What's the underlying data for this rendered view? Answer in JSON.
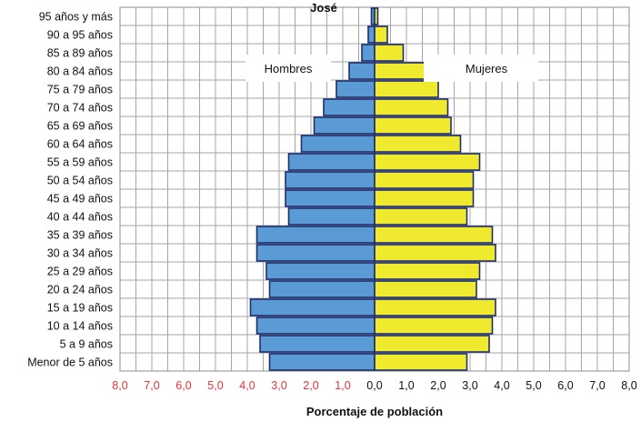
{
  "chart_data": {
    "type": "bar",
    "orientation": "horizontal",
    "layout": "population-pyramid",
    "title": "José",
    "xlabel": "Porcentaje de población",
    "categories": [
      "Menor de 5 años",
      "5 a 9 años",
      "10 a 14 años",
      "15 a 19 años",
      "20 a 24 años",
      "25 a 29 años",
      "30 a 34 años",
      "35 a 39 años",
      "40 a 44 años",
      "45 a 49 años",
      "50 a 54 años",
      "55 a 59 años",
      "60 a 64 años",
      "65 a 69 años",
      "70 a 74 años",
      "75 a 79 años",
      "80 a 84 años",
      "85 a 89 años",
      "90 a 95 años",
      "95 años y más"
    ],
    "series": [
      {
        "name": "Hombres",
        "side": "left",
        "color": "#5b9bd5",
        "values": [
          3.3,
          3.6,
          3.7,
          3.9,
          3.3,
          3.4,
          3.7,
          3.7,
          2.7,
          2.8,
          2.8,
          2.7,
          2.3,
          1.9,
          1.6,
          1.2,
          0.8,
          0.4,
          0.2,
          0.1
        ]
      },
      {
        "name": "Mujeres",
        "side": "right",
        "color": "#f0ea2f",
        "values": [
          2.9,
          3.6,
          3.7,
          3.8,
          3.2,
          3.3,
          3.8,
          3.7,
          2.9,
          3.1,
          3.1,
          3.3,
          2.7,
          2.4,
          2.3,
          2.0,
          1.6,
          0.9,
          0.4,
          0.1
        ]
      }
    ],
    "xlim": [
      -8,
      8
    ],
    "x_ticks": [
      "8,0",
      "7,0",
      "6,0",
      "5,0",
      "4,0",
      "3,0",
      "2,0",
      "1,0",
      "0,0",
      "1,0",
      "2,0",
      "3,0",
      "4,0",
      "5,0",
      "6,0",
      "7,0",
      "8,0"
    ],
    "x_tick_colors": {
      "negative": "#e8323c",
      "positive": "#111111"
    },
    "grid": true,
    "legend": [
      "Hombres",
      "Mujeres"
    ],
    "legend_placement": "upper-inside"
  }
}
